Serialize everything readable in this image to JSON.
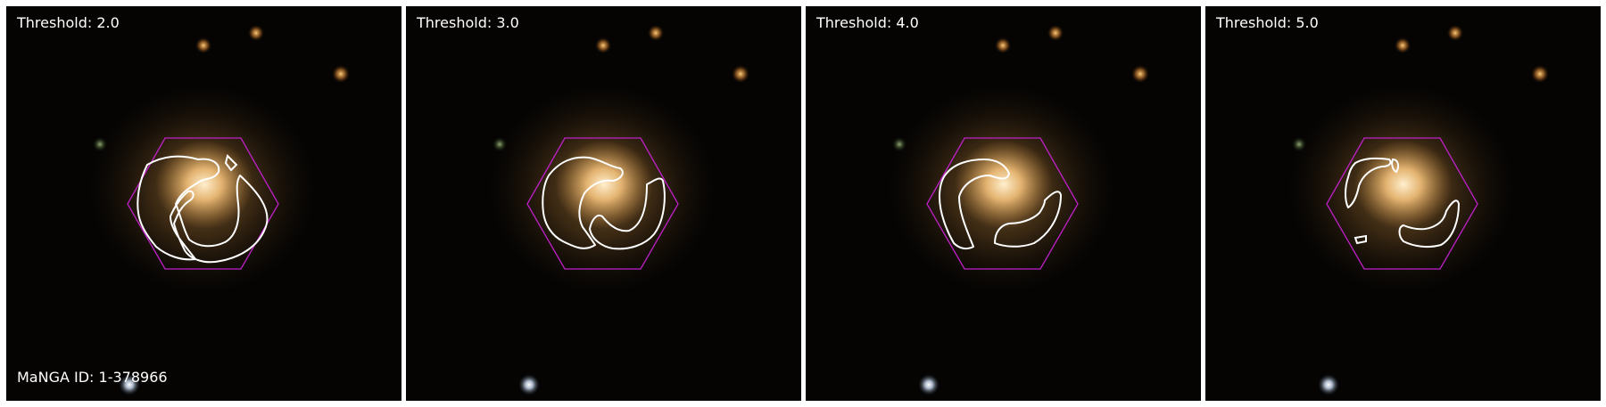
{
  "panels": [
    {
      "threshold_label": "Threshold: 2.0"
    },
    {
      "threshold_label": "Threshold: 3.0"
    },
    {
      "threshold_label": "Threshold: 4.0"
    },
    {
      "threshold_label": "Threshold: 5.0"
    }
  ],
  "manga_id_label": "MaNGA ID: 1-378966",
  "colors": {
    "background": "#050403",
    "galaxy_core": "#ffd9a0",
    "galaxy_halo": "#c8913f",
    "hexagon": "#c020c8",
    "contour": "#ffffff",
    "star_orange": "#f0a040",
    "star_white": "#f4f8ff"
  }
}
